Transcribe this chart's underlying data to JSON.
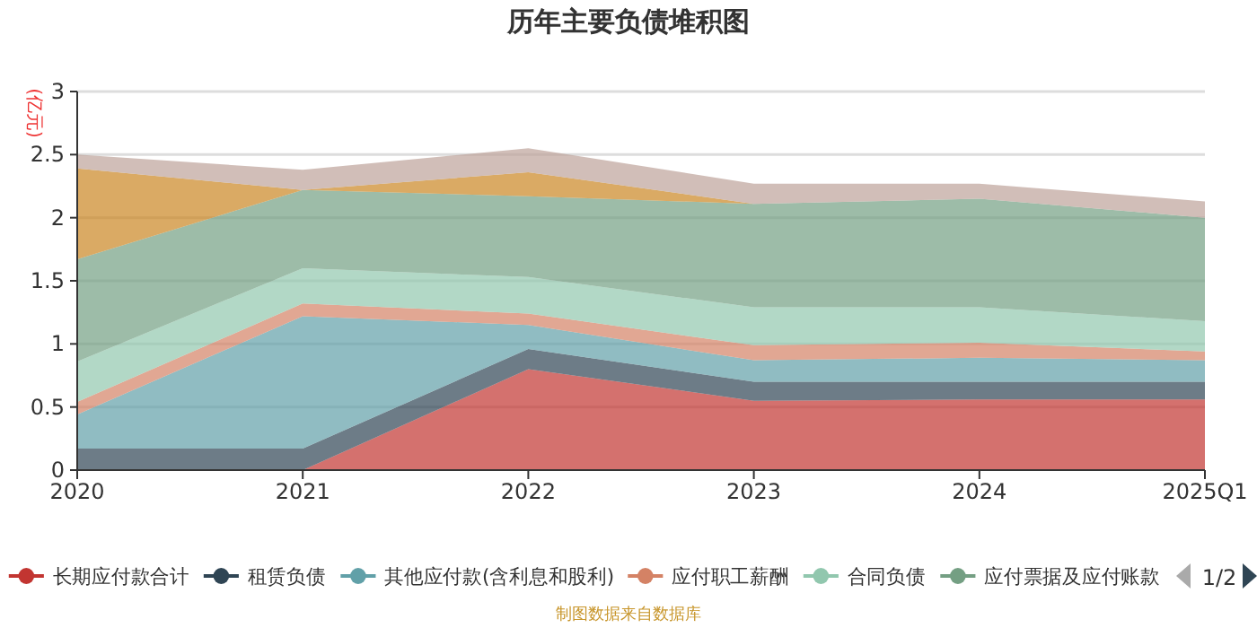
{
  "chart_data": {
    "type": "area",
    "stacked": true,
    "title": "历年主要负债堆积图",
    "ylabel": "(亿元)",
    "categories": [
      "2020",
      "2021",
      "2022",
      "2023",
      "2024",
      "2025Q1"
    ],
    "ylim": [
      0,
      3
    ],
    "yticks": [
      0,
      0.5,
      1,
      1.5,
      2,
      2.5,
      3
    ],
    "grid": "y",
    "legend": "bottom",
    "series": [
      {
        "name": "长期应付款合计",
        "color": "#c23531",
        "values": [
          0,
          0,
          0.8,
          0.55,
          0.56,
          0.56
        ]
      },
      {
        "name": "租赁负债",
        "color": "#2f4554",
        "values": [
          0.17,
          0.17,
          0.16,
          0.15,
          0.14,
          0.14
        ]
      },
      {
        "name": "其他应付款(含利息和股利)",
        "color": "#61a0a8",
        "values": [
          0.27,
          1.05,
          0.19,
          0.17,
          0.19,
          0.17
        ]
      },
      {
        "name": "应付职工薪酬",
        "color": "#d48265",
        "values": [
          0.1,
          0.1,
          0.09,
          0.12,
          0.12,
          0.07
        ]
      },
      {
        "name": "合同负债",
        "color": "#91c7ae",
        "values": [
          0.32,
          0.28,
          0.29,
          0.3,
          0.28,
          0.24
        ]
      },
      {
        "name": "应付票据及应付账款",
        "color": "#749f83",
        "values": [
          0.81,
          0.62,
          0.64,
          0.82,
          0.86,
          0.82
        ]
      },
      {
        "color": "#ca8622",
        "values": [
          0.72,
          0,
          0.19,
          0,
          0,
          0
        ]
      },
      {
        "color": "#bda29a",
        "values": [
          0.11,
          0.16,
          0.19,
          0.16,
          0.12,
          0.13
        ]
      }
    ],
    "annotations": [
      "1/2",
      "制图数据来自数据库"
    ]
  }
}
